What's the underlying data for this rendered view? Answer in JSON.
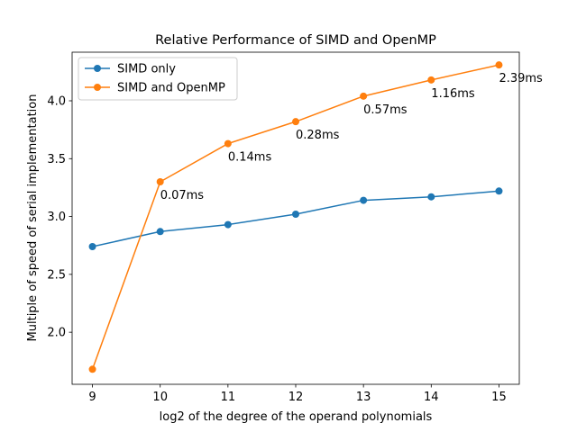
{
  "chart_data": {
    "type": "line",
    "title": "Relative Performance of SIMD and OpenMP",
    "xlabel": "log2 of the degree of the operand polynomials",
    "ylabel": "Multiple of speed of serial implementation",
    "x": [
      9,
      10,
      11,
      12,
      13,
      14,
      15
    ],
    "xlim": [
      8.7,
      15.3
    ],
    "ylim": [
      1.55,
      4.42
    ],
    "xticks": [
      "9",
      "10",
      "11",
      "12",
      "13",
      "14",
      "15"
    ],
    "yticks": [
      "2.0",
      "2.5",
      "3.0",
      "3.5",
      "4.0"
    ],
    "grid": false,
    "legend_position": "top-left",
    "series": [
      {
        "name": "SIMD only",
        "color": "#1f77b4",
        "values": [
          2.74,
          2.87,
          2.93,
          3.02,
          3.14,
          3.17,
          3.22
        ]
      },
      {
        "name": "SIMD and OpenMP",
        "color": "#ff7f0e",
        "values": [
          1.68,
          3.3,
          3.63,
          3.82,
          4.04,
          4.18,
          4.31
        ]
      }
    ],
    "annotations": [
      {
        "series": 1,
        "index": 1,
        "text": "0.07ms"
      },
      {
        "series": 1,
        "index": 2,
        "text": "0.14ms"
      },
      {
        "series": 1,
        "index": 3,
        "text": "0.28ms"
      },
      {
        "series": 1,
        "index": 4,
        "text": "0.57ms"
      },
      {
        "series": 1,
        "index": 5,
        "text": "1.16ms"
      },
      {
        "series": 1,
        "index": 6,
        "text": "2.39ms"
      }
    ]
  }
}
